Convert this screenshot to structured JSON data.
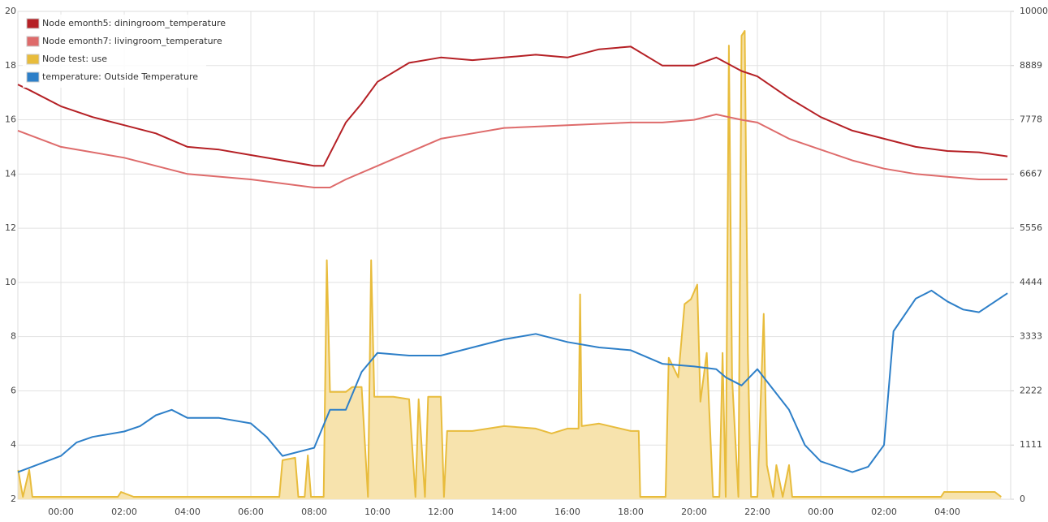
{
  "chart_data": {
    "type": "line",
    "xlim": [
      -1.36,
      30
    ],
    "xticks": [
      {
        "value": 0,
        "label": "00:00"
      },
      {
        "value": 2,
        "label": "02:00"
      },
      {
        "value": 4,
        "label": "04:00"
      },
      {
        "value": 6,
        "label": "06:00"
      },
      {
        "value": 8,
        "label": "08:00"
      },
      {
        "value": 10,
        "label": "10:00"
      },
      {
        "value": 12,
        "label": "12:00"
      },
      {
        "value": 14,
        "label": "14:00"
      },
      {
        "value": 16,
        "label": "16:00"
      },
      {
        "value": 18,
        "label": "18:00"
      },
      {
        "value": 20,
        "label": "20:00"
      },
      {
        "value": 22,
        "label": "22:00"
      },
      {
        "value": 24,
        "label": "00:00"
      },
      {
        "value": 26,
        "label": "02:00"
      },
      {
        "value": 28,
        "label": "04:00"
      }
    ],
    "ylim": [
      2,
      20
    ],
    "yticks": [
      2,
      4,
      6,
      8,
      10,
      12,
      14,
      16,
      18,
      20
    ],
    "y2lim": [
      0,
      10000
    ],
    "y2ticks": [
      0,
      1111,
      2222,
      3333,
      4444,
      5556,
      6667,
      7778,
      8889,
      10000
    ],
    "grid": true,
    "legend": "top-left",
    "series": [
      {
        "name": "Node emonth5: diningroom_temperature",
        "color": "#b52025",
        "x": [
          -1.36,
          -1,
          0,
          1,
          2,
          3,
          4,
          5,
          6,
          7,
          8,
          8.3,
          9,
          9.5,
          10,
          11,
          12,
          13,
          14,
          15,
          16,
          17,
          18,
          19,
          20,
          20.7,
          21.5,
          22,
          23,
          24,
          25,
          26,
          27,
          28,
          29,
          29.9
        ],
        "values": [
          17.3,
          17.1,
          16.5,
          16.1,
          15.8,
          15.5,
          15.0,
          14.9,
          14.7,
          14.5,
          14.3,
          14.3,
          15.9,
          16.6,
          17.4,
          18.1,
          18.3,
          18.2,
          18.3,
          18.4,
          18.3,
          18.6,
          18.7,
          18.0,
          18.0,
          18.3,
          17.8,
          17.6,
          16.8,
          16.1,
          15.6,
          15.3,
          15.0,
          14.85,
          14.8,
          14.65
        ]
      },
      {
        "name": "Node emonth7: livingroom_temperature",
        "color": "#de6b6b",
        "x": [
          -1.36,
          0,
          2,
          4,
          6,
          8,
          8.5,
          9,
          10,
          11,
          12,
          13,
          14,
          16,
          18,
          19,
          20,
          20.7,
          21.5,
          22,
          23,
          24,
          25,
          26,
          27,
          28,
          29,
          29.9
        ],
        "values": [
          15.6,
          15.0,
          14.6,
          14.0,
          13.8,
          13.5,
          13.5,
          13.8,
          14.3,
          14.8,
          15.3,
          15.5,
          15.7,
          15.8,
          15.9,
          15.9,
          16.0,
          16.2,
          16.0,
          15.9,
          15.3,
          14.9,
          14.5,
          14.2,
          14.0,
          13.9,
          13.8,
          13.8
        ]
      },
      {
        "name": "Node test: use",
        "color": "#e8bc3c",
        "fill": "#f7e3ad",
        "axis": "y2",
        "x": [
          -1.35,
          -1.2,
          -1.0,
          -0.9,
          1.8,
          1.9,
          2.3,
          6.9,
          7.0,
          7.4,
          7.5,
          7.7,
          7.8,
          7.9,
          8.3,
          8.4,
          8.5,
          9.0,
          9.2,
          9.5,
          9.7,
          9.8,
          9.9,
          10.5,
          11.0,
          11.2,
          11.3,
          11.5,
          11.6,
          12.0,
          12.1,
          12.2,
          13.0,
          14.0,
          15.0,
          15.5,
          16.0,
          16.35,
          16.4,
          16.45,
          17.0,
          18.0,
          18.25,
          18.3,
          19.1,
          19.2,
          19.5,
          19.7,
          19.9,
          20.1,
          20.2,
          20.4,
          20.6,
          20.8,
          20.9,
          21.0,
          21.1,
          21.2,
          21.4,
          21.5,
          21.6,
          21.7,
          21.8,
          22.0,
          22.2,
          22.3,
          22.5,
          22.6,
          22.8,
          23.0,
          23.1,
          27.8,
          27.9,
          29.5,
          29.7
        ],
        "values": [
          600,
          50,
          600,
          50,
          50,
          150,
          50,
          50,
          800,
          850,
          50,
          50,
          900,
          50,
          50,
          4900,
          2200,
          2200,
          2300,
          2300,
          50,
          4900,
          2100,
          2100,
          2050,
          50,
          2050,
          50,
          2100,
          2100,
          50,
          1400,
          1400,
          1500,
          1450,
          1350,
          1450,
          1450,
          4200,
          1500,
          1550,
          1400,
          1400,
          50,
          50,
          2900,
          2500,
          4000,
          4100,
          4400,
          2000,
          3000,
          50,
          50,
          3000,
          50,
          9300,
          2500,
          50,
          9500,
          9600,
          3000,
          50,
          50,
          3800,
          700,
          50,
          700,
          50,
          700,
          50,
          50,
          150,
          150,
          50
        ]
      },
      {
        "name": "temperature: Outside Temperature",
        "color": "#2d7fc8",
        "x": [
          -1.36,
          0,
          0.5,
          1,
          2,
          2.5,
          3,
          3.5,
          4,
          5,
          6,
          6.5,
          7,
          8,
          8.5,
          9,
          9.5,
          10,
          11,
          12,
          13,
          14,
          15,
          16,
          17,
          18,
          19,
          20,
          20.7,
          21,
          21.5,
          22,
          23,
          23.5,
          24,
          25,
          25.5,
          26,
          26.3,
          27,
          27.5,
          28,
          28.5,
          29,
          29.9
        ],
        "values": [
          3.0,
          3.6,
          4.1,
          4.3,
          4.5,
          4.7,
          5.1,
          5.3,
          5.0,
          5.0,
          4.8,
          4.3,
          3.6,
          3.9,
          5.3,
          5.3,
          6.7,
          7.4,
          7.3,
          7.3,
          7.6,
          7.9,
          8.1,
          7.8,
          7.6,
          7.5,
          7.0,
          6.9,
          6.8,
          6.5,
          6.2,
          6.8,
          5.3,
          4.0,
          3.4,
          3.0,
          3.2,
          4.0,
          8.2,
          9.4,
          9.7,
          9.3,
          9.0,
          8.9,
          9.6
        ]
      }
    ]
  }
}
